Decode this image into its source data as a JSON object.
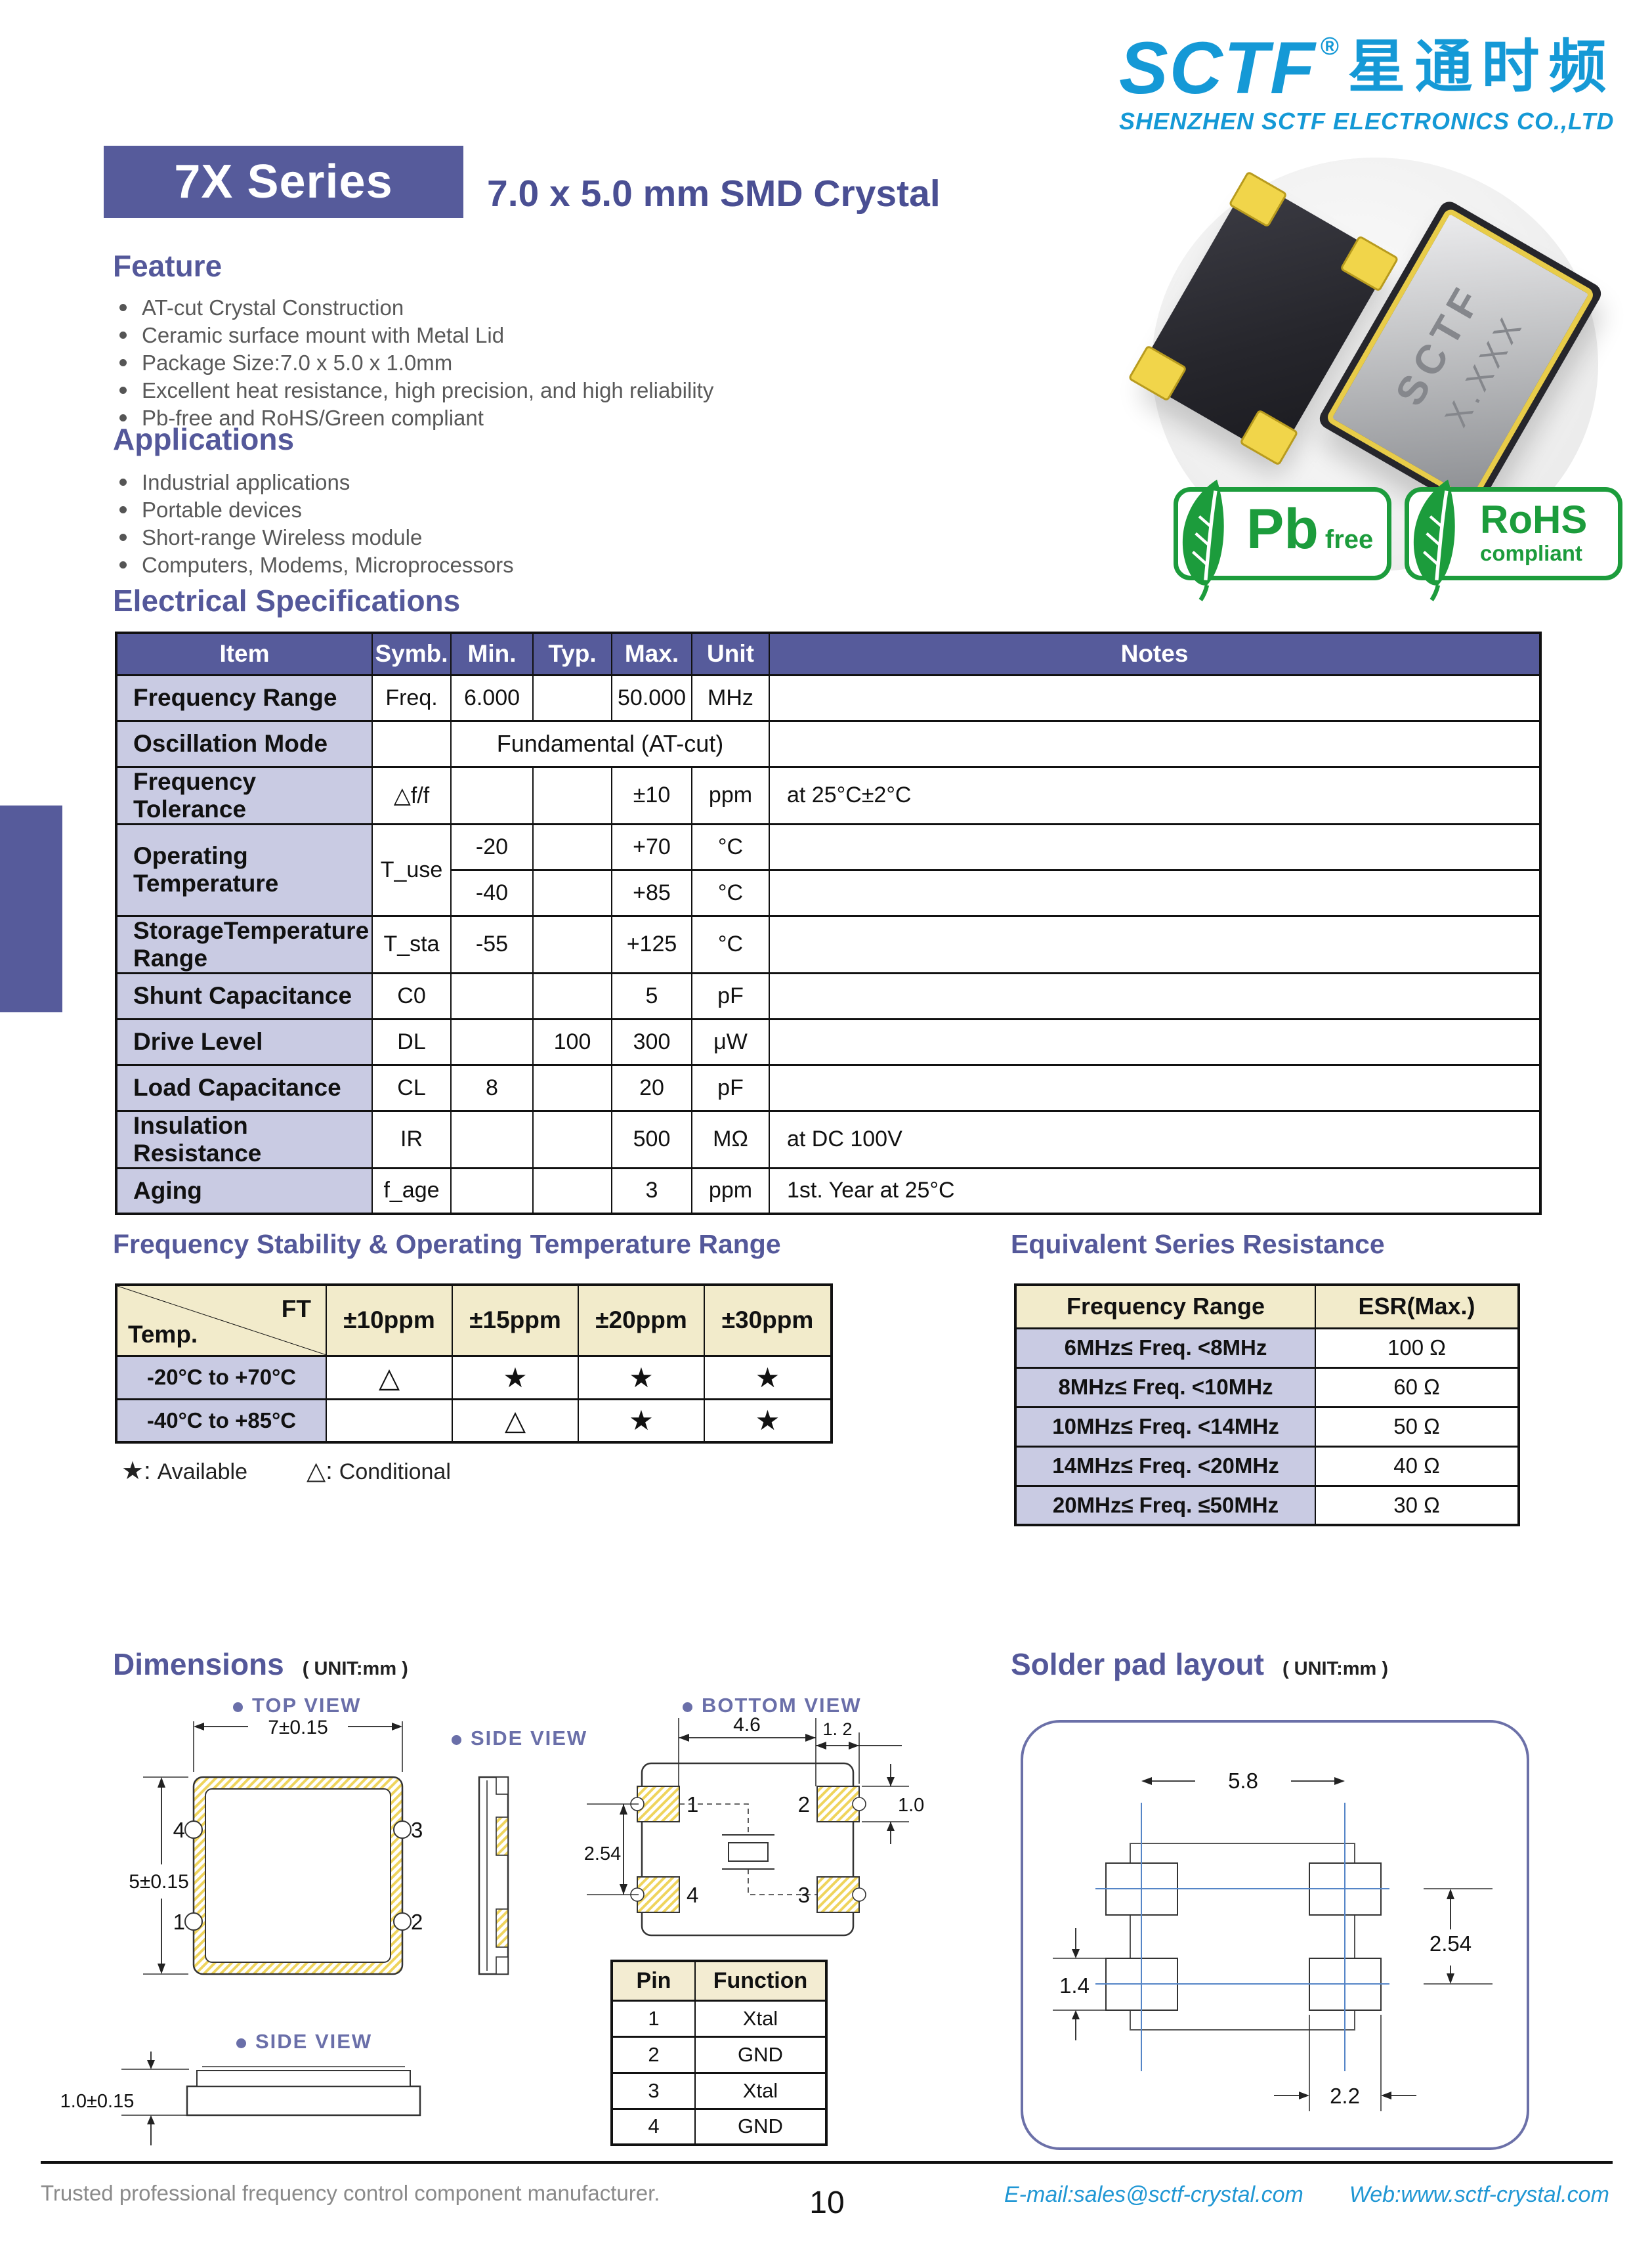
{
  "logo": {
    "brand": "SCTF",
    "reg": "®",
    "cn": "星通时频",
    "company": "SHENZHEN SCTF ELECTRONICS CO.,LTD"
  },
  "header": {
    "series_badge": "7X Series",
    "subtitle": "7.0 x 5.0 mm SMD Crystal"
  },
  "feature": {
    "title": "Feature",
    "items": [
      "AT-cut Crystal Construction",
      "Ceramic surface mount with Metal Lid",
      "Package Size:7.0 x 5.0 x 1.0mm",
      "Excellent heat resistance, high precision, and high reliability",
      "Pb-free and RoHS/Green compliant"
    ]
  },
  "applications": {
    "title": "Applications",
    "items": [
      "Industrial applications",
      "Portable devices",
      "Short-range Wireless module",
      "Computers, Modems, Microprocessors"
    ]
  },
  "photo": {
    "marking_line1": "SCTF",
    "marking_line2": "X.XXX",
    "pb_big": "Pb",
    "pb_small": "free",
    "rohs_big": "RoHS",
    "rohs_small": "compliant"
  },
  "electrical": {
    "title": "Electrical Specifications",
    "headers": [
      "Item",
      "Symb.",
      "Min.",
      "Typ.",
      "Max.",
      "Unit",
      "Notes"
    ],
    "rows": [
      {
        "item": "Frequency Range",
        "symb": "Freq.",
        "min": "6.000",
        "typ": "",
        "max": "50.000",
        "unit": "MHz",
        "notes": ""
      },
      {
        "item": "Oscillation Mode",
        "symb": "",
        "merged": "Fundamental (AT-cut)",
        "notes": ""
      },
      {
        "item": "Frequency Tolerance",
        "symb": "△f/f",
        "min": "",
        "typ": "",
        "max": "±10",
        "unit": "ppm",
        "notes": "at 25°C±2°C"
      },
      {
        "item": "Operating Temperature",
        "symb": "T_use",
        "sub": [
          {
            "min": "-20",
            "typ": "",
            "max": "+70",
            "unit": "°C",
            "notes": ""
          },
          {
            "min": "-40",
            "typ": "",
            "max": "+85",
            "unit": "°C",
            "notes": ""
          }
        ]
      },
      {
        "item": "StorageTemperature Range",
        "symb": "T_sta",
        "min": "-55",
        "typ": "",
        "max": "+125",
        "unit": "°C",
        "notes": ""
      },
      {
        "item": "Shunt Capacitance",
        "symb": "C0",
        "min": "",
        "typ": "",
        "max": "5",
        "unit": "pF",
        "notes": ""
      },
      {
        "item": "Drive Level",
        "symb": "DL",
        "min": "",
        "typ": "100",
        "max": "300",
        "unit": "μW",
        "notes": ""
      },
      {
        "item": "Load Capacitance",
        "symb": "CL",
        "min": "8",
        "typ": "",
        "max": "20",
        "unit": "pF",
        "notes": ""
      },
      {
        "item": "Insulation Resistance",
        "symb": "IR",
        "min": "",
        "typ": "",
        "max": "500",
        "unit": "MΩ",
        "notes": "at DC 100V"
      },
      {
        "item": "Aging",
        "symb": "f_age",
        "min": "",
        "typ": "",
        "max": "3",
        "unit": "ppm",
        "notes": "1st. Year at 25°C"
      }
    ]
  },
  "stability": {
    "title": "Frequency Stability & Operating Temperature Range",
    "corner_top": "FT",
    "corner_bottom": "Temp.",
    "cols": [
      "±10ppm",
      "±15ppm",
      "±20ppm",
      "±30ppm"
    ],
    "rows": [
      {
        "label": "-20°C to +70°C",
        "cells": [
          "△",
          "★",
          "★",
          "★"
        ]
      },
      {
        "label": "-40°C to +85°C",
        "cells": [
          "",
          "△",
          "★",
          "★"
        ]
      }
    ],
    "legend": {
      "star_symbol": "★:",
      "star_label": "Available",
      "tri_symbol": "△:",
      "tri_label": "Conditional"
    }
  },
  "esr": {
    "title": "Equivalent Series Resistance",
    "headers": [
      "Frequency Range",
      "ESR(Max.)"
    ],
    "rows": [
      {
        "range": "6MHz≤ Freq. <8MHz",
        "esr": "100 Ω"
      },
      {
        "range": "8MHz≤ Freq. <10MHz",
        "esr": "60 Ω"
      },
      {
        "range": "10MHz≤ Freq. <14MHz",
        "esr": "50 Ω"
      },
      {
        "range": "14MHz≤ Freq. <20MHz",
        "esr": "40 Ω"
      },
      {
        "range": "20MHz≤ Freq. ≤50MHz",
        "esr": "30 Ω"
      }
    ]
  },
  "dimensions": {
    "title": "Dimensions",
    "unit": "( UNIT:mm )",
    "top_view_label": "TOP VIEW",
    "side_view_label": "SIDE VIEW",
    "bottom_view_label": "BOTTOM VIEW",
    "side_view2_label": "SIDE VIEW",
    "top": {
      "width": "7±0.15",
      "height": "5±0.15",
      "pin_tl": "4",
      "pin_tr": "3",
      "pin_bl": "1",
      "pin_br": "2"
    },
    "bottom": {
      "width": "4.6",
      "edge": "1. 2",
      "pad_height": "1.0",
      "pitch": "2.54",
      "pin_tl": "1",
      "pin_tr": "2",
      "pin_bl": "4",
      "pin_br": "3"
    },
    "side2": {
      "height": "1.0±0.15"
    }
  },
  "pin_table": {
    "headers": [
      "Pin",
      "Function"
    ],
    "rows": [
      {
        "pin": "1",
        "function": "Xtal"
      },
      {
        "pin": "2",
        "function": "GND"
      },
      {
        "pin": "3",
        "function": "Xtal"
      },
      {
        "pin": "4",
        "function": "GND"
      }
    ]
  },
  "solder": {
    "title": "Solder pad layout",
    "unit": "( UNIT:mm )",
    "width": "5.8",
    "pitch": "2.54",
    "pad_height": "1.4",
    "pad_width": "2.2"
  },
  "footer": {
    "left": "Trusted professional frequency control component manufacturer.",
    "page": "10",
    "email": "E-mail:sales@sctf-crystal.com",
    "web": "Web:www.sctf-crystal.com"
  },
  "colors": {
    "accent_purple": "#565B9B",
    "heading_purple": "#54589A",
    "row_lavender": "#C9CBE3",
    "header_cream": "#F2EBCB",
    "logo_blue": "#1599D6",
    "footer_blue": "#2097D4",
    "badge_green": "#1C9C3C",
    "hatch_yellow": "#EFD45C",
    "drawing_blue": "#5585C7"
  }
}
